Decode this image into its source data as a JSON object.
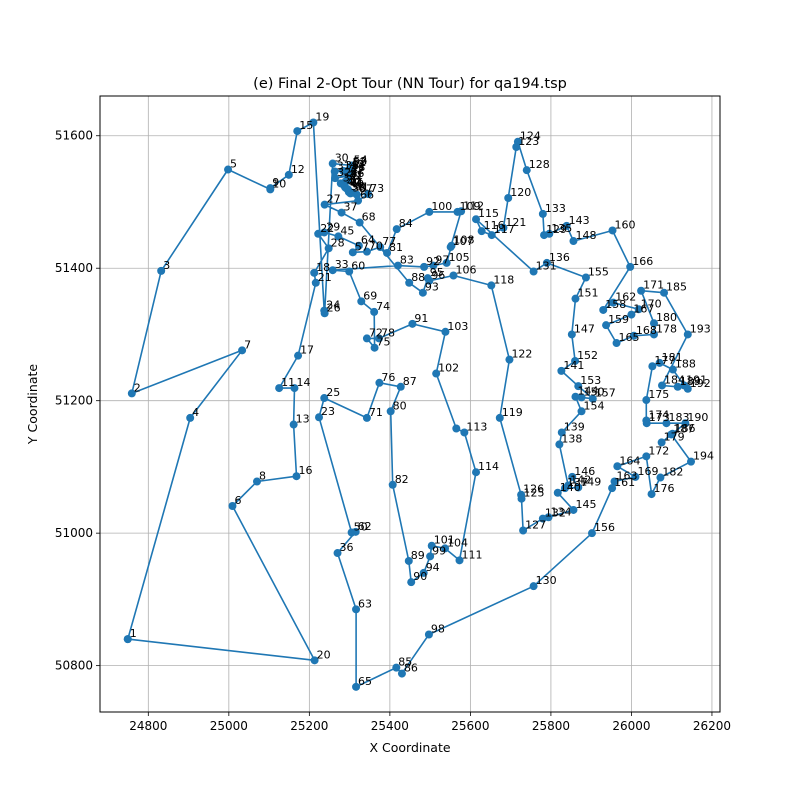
{
  "chart_data": {
    "type": "line",
    "title": "(e) Final 2-Opt Tour (NN Tour) for qa194.tsp",
    "xlabel": "X Coordinate",
    "ylabel": "Y Coordinate",
    "xlim": [
      24680,
      26220
    ],
    "ylim": [
      50730,
      51660
    ],
    "xticks": [
      24800,
      25000,
      25200,
      25400,
      25600,
      25800,
      26000,
      26200
    ],
    "yticks": [
      50800,
      51000,
      51200,
      51400,
      51600
    ],
    "grid": true,
    "color": "#1f77b4",
    "points": [
      {
        "id": 1,
        "x": 24749,
        "y": 50840
      },
      {
        "id": 20,
        "x": 25213,
        "y": 50808
      },
      {
        "id": 6,
        "x": 25009,
        "y": 51041
      },
      {
        "id": 8,
        "x": 25070,
        "y": 51078
      },
      {
        "id": 16,
        "x": 25168,
        "y": 51086
      },
      {
        "id": 13,
        "x": 25161,
        "y": 51164
      },
      {
        "id": 14,
        "x": 25163,
        "y": 51219
      },
      {
        "id": 11,
        "x": 25125,
        "y": 51219
      },
      {
        "id": 17,
        "x": 25172,
        "y": 51268
      },
      {
        "id": 21,
        "x": 25216,
        "y": 51378
      },
      {
        "id": 18,
        "x": 25212,
        "y": 51393
      },
      {
        "id": 28,
        "x": 25248,
        "y": 51430
      },
      {
        "id": 22,
        "x": 25222,
        "y": 51452
      },
      {
        "id": 29,
        "x": 25237,
        "y": 51454
      },
      {
        "id": 45,
        "x": 25272,
        "y": 51448
      },
      {
        "id": 64,
        "x": 25323,
        "y": 51434
      },
      {
        "id": 57,
        "x": 25308,
        "y": 51424
      },
      {
        "id": 70,
        "x": 25343,
        "y": 51425
      },
      {
        "id": 77,
        "x": 25376,
        "y": 51432
      },
      {
        "id": 81,
        "x": 25393,
        "y": 51423
      },
      {
        "id": 84,
        "x": 25417,
        "y": 51459
      },
      {
        "id": 100,
        "x": 25498,
        "y": 51485
      },
      {
        "id": 109,
        "x": 25568,
        "y": 51485
      },
      {
        "id": 112,
        "x": 25577,
        "y": 51486
      },
      {
        "id": 107,
        "x": 25551,
        "y": 51432
      },
      {
        "id": 108,
        "x": 25553,
        "y": 51434
      },
      {
        "id": 105,
        "x": 25541,
        "y": 51408
      },
      {
        "id": 97,
        "x": 25508,
        "y": 51404
      },
      {
        "id": 92,
        "x": 25485,
        "y": 51402
      },
      {
        "id": 83,
        "x": 25420,
        "y": 51404
      },
      {
        "id": 33,
        "x": 25258,
        "y": 51397
      },
      {
        "id": 60,
        "x": 25299,
        "y": 51395
      },
      {
        "id": 69,
        "x": 25329,
        "y": 51350
      },
      {
        "id": 74,
        "x": 25361,
        "y": 51334
      },
      {
        "id": 75,
        "x": 25362,
        "y": 51280
      },
      {
        "id": 72,
        "x": 25343,
        "y": 51294
      },
      {
        "id": 78,
        "x": 25373,
        "y": 51294
      },
      {
        "id": 91,
        "x": 25456,
        "y": 51316
      },
      {
        "id": 103,
        "x": 25538,
        "y": 51304
      },
      {
        "id": 102,
        "x": 25515,
        "y": 51241
      },
      {
        "id": 109,
        "x": 25565,
        "y": 51158
      },
      {
        "id": 113,
        "x": 25585,
        "y": 51152
      },
      {
        "id": 114,
        "x": 25614,
        "y": 51092
      },
      {
        "id": 111,
        "x": 25573,
        "y": 50959
      },
      {
        "id": 104,
        "x": 25537,
        "y": 50977
      },
      {
        "id": 101,
        "x": 25504,
        "y": 50981
      },
      {
        "id": 99,
        "x": 25500,
        "y": 50965
      },
      {
        "id": 94,
        "x": 25484,
        "y": 50940
      },
      {
        "id": 90,
        "x": 25453,
        "y": 50926
      },
      {
        "id": 89,
        "x": 25447,
        "y": 50958
      },
      {
        "id": 82,
        "x": 25407,
        "y": 51073
      },
      {
        "id": 80,
        "x": 25402,
        "y": 51184
      },
      {
        "id": 87,
        "x": 25427,
        "y": 51221
      },
      {
        "id": 76,
        "x": 25374,
        "y": 51227
      },
      {
        "id": 71,
        "x": 25343,
        "y": 51174
      },
      {
        "id": 25,
        "x": 25237,
        "y": 51204
      },
      {
        "id": 23,
        "x": 25224,
        "y": 51175
      },
      {
        "id": 50,
        "x": 25305,
        "y": 51001
      },
      {
        "id": 62,
        "x": 25315,
        "y": 51002
      },
      {
        "id": 36,
        "x": 25270,
        "y": 50970
      },
      {
        "id": 63,
        "x": 25316,
        "y": 50885
      },
      {
        "id": 65,
        "x": 25316,
        "y": 50768
      },
      {
        "id": 85,
        "x": 25416,
        "y": 50797
      },
      {
        "id": 86,
        "x": 25430,
        "y": 50788
      },
      {
        "id": 98,
        "x": 25497,
        "y": 50847
      },
      {
        "id": 130,
        "x": 25757,
        "y": 50920
      },
      {
        "id": 156,
        "x": 25902,
        "y": 51000
      },
      {
        "id": 161,
        "x": 25952,
        "y": 51068
      },
      {
        "id": 163,
        "x": 25958,
        "y": 51078
      },
      {
        "id": 169,
        "x": 26010,
        "y": 51085
      },
      {
        "id": 164,
        "x": 25965,
        "y": 51101
      },
      {
        "id": 172,
        "x": 26037,
        "y": 51116
      },
      {
        "id": 176,
        "x": 26050,
        "y": 51059
      },
      {
        "id": 182,
        "x": 26072,
        "y": 51084
      },
      {
        "id": 194,
        "x": 26148,
        "y": 51108
      },
      {
        "id": 187,
        "x": 26099,
        "y": 51149
      },
      {
        "id": 186,
        "x": 26102,
        "y": 51150
      },
      {
        "id": 179,
        "x": 26075,
        "y": 51137
      },
      {
        "id": 190,
        "x": 26134,
        "y": 51166
      },
      {
        "id": 183,
        "x": 26087,
        "y": 51166
      },
      {
        "id": 173,
        "x": 26038,
        "y": 51166
      },
      {
        "id": 174,
        "x": 26037,
        "y": 51170
      },
      {
        "id": 175,
        "x": 26037,
        "y": 51201
      },
      {
        "id": 177,
        "x": 26052,
        "y": 51252
      },
      {
        "id": 181,
        "x": 26070,
        "y": 51257
      },
      {
        "id": 188,
        "x": 26103,
        "y": 51247
      },
      {
        "id": 191,
        "x": 26131,
        "y": 51223
      },
      {
        "id": 192,
        "x": 26140,
        "y": 51218
      },
      {
        "id": 189,
        "x": 26115,
        "y": 51221
      },
      {
        "id": 184,
        "x": 26076,
        "y": 51223
      },
      {
        "id": 193,
        "x": 26140,
        "y": 51300
      },
      {
        "id": 185,
        "x": 26081,
        "y": 51363
      },
      {
        "id": 171,
        "x": 26024,
        "y": 51366
      },
      {
        "id": 180,
        "x": 26056,
        "y": 51317
      },
      {
        "id": 178,
        "x": 26056,
        "y": 51300
      },
      {
        "id": 168,
        "x": 26006,
        "y": 51298
      },
      {
        "id": 165,
        "x": 25963,
        "y": 51287
      },
      {
        "id": 159,
        "x": 25937,
        "y": 51314
      },
      {
        "id": 167,
        "x": 26000,
        "y": 51330
      },
      {
        "id": 170,
        "x": 26018,
        "y": 51338
      },
      {
        "id": 162,
        "x": 25955,
        "y": 51348
      },
      {
        "id": 158,
        "x": 25930,
        "y": 51337
      },
      {
        "id": 166,
        "x": 25997,
        "y": 51402
      },
      {
        "id": 160,
        "x": 25953,
        "y": 51457
      },
      {
        "id": 148,
        "x": 25856,
        "y": 51441
      },
      {
        "id": 143,
        "x": 25839,
        "y": 51464
      },
      {
        "id": 135,
        "x": 25796,
        "y": 51452
      },
      {
        "id": 129,
        "x": 25783,
        "y": 51450
      },
      {
        "id": 133,
        "x": 25780,
        "y": 51482
      },
      {
        "id": 128,
        "x": 25740,
        "y": 51548
      },
      {
        "id": 124,
        "x": 25718,
        "y": 51591
      },
      {
        "id": 123,
        "x": 25714,
        "y": 51583
      },
      {
        "id": 120,
        "x": 25694,
        "y": 51506
      },
      {
        "id": 121,
        "x": 25682,
        "y": 51461
      },
      {
        "id": 117,
        "x": 25653,
        "y": 51450
      },
      {
        "id": 116,
        "x": 25628,
        "y": 51456
      },
      {
        "id": 115,
        "x": 25614,
        "y": 51474
      },
      {
        "id": 131,
        "x": 25757,
        "y": 51395
      },
      {
        "id": 136,
        "x": 25790,
        "y": 51408
      },
      {
        "id": 155,
        "x": 25887,
        "y": 51386
      },
      {
        "id": 151,
        "x": 25861,
        "y": 51354
      },
      {
        "id": 147,
        "x": 25852,
        "y": 51300
      },
      {
        "id": 152,
        "x": 25860,
        "y": 51260
      },
      {
        "id": 141,
        "x": 25826,
        "y": 51245
      },
      {
        "id": 153,
        "x": 25868,
        "y": 51222
      },
      {
        "id": 157,
        "x": 25904,
        "y": 51203
      },
      {
        "id": 150,
        "x": 25876,
        "y": 51205
      },
      {
        "id": 144,
        "x": 25861,
        "y": 51206
      },
      {
        "id": 154,
        "x": 25876,
        "y": 51184
      },
      {
        "id": 139,
        "x": 25827,
        "y": 51152
      },
      {
        "id": 138,
        "x": 25821,
        "y": 51134
      },
      {
        "id": 142,
        "x": 25843,
        "y": 51072
      },
      {
        "id": 146,
        "x": 25853,
        "y": 51085
      },
      {
        "id": 149,
        "x": 25868,
        "y": 51069
      },
      {
        "id": 137,
        "x": 25835,
        "y": 51068
      },
      {
        "id": 140,
        "x": 25817,
        "y": 51061
      },
      {
        "id": 145,
        "x": 25856,
        "y": 51035
      },
      {
        "id": 134,
        "x": 25794,
        "y": 51024
      },
      {
        "id": 132,
        "x": 25780,
        "y": 51022
      },
      {
        "id": 127,
        "x": 25731,
        "y": 51004
      },
      {
        "id": 125,
        "x": 25727,
        "y": 51052
      },
      {
        "id": 126,
        "x": 25726,
        "y": 51058
      },
      {
        "id": 119,
        "x": 25673,
        "y": 51174
      },
      {
        "id": 122,
        "x": 25697,
        "y": 51262
      },
      {
        "id": 118,
        "x": 25652,
        "y": 51374
      },
      {
        "id": 106,
        "x": 25558,
        "y": 51389
      },
      {
        "id": 96,
        "x": 25498,
        "y": 51381
      },
      {
        "id": 95,
        "x": 25494,
        "y": 51385
      },
      {
        "id": 93,
        "x": 25482,
        "y": 51363
      },
      {
        "id": 88,
        "x": 25448,
        "y": 51378
      },
      {
        "id": 68,
        "x": 25325,
        "y": 51469
      },
      {
        "id": 37,
        "x": 25280,
        "y": 51484
      },
      {
        "id": 27,
        "x": 25238,
        "y": 51496
      },
      {
        "id": 66,
        "x": 25321,
        "y": 51502
      },
      {
        "id": 73,
        "x": 25346,
        "y": 51512
      },
      {
        "id": 67,
        "x": 25318,
        "y": 51511
      },
      {
        "id": 61,
        "x": 25308,
        "y": 51514
      },
      {
        "id": 58,
        "x": 25302,
        "y": 51513
      },
      {
        "id": 56,
        "x": 25298,
        "y": 51515
      },
      {
        "id": 49,
        "x": 25296,
        "y": 51519
      },
      {
        "id": 44,
        "x": 25293,
        "y": 51520
      },
      {
        "id": 40,
        "x": 25289,
        "y": 51522
      },
      {
        "id": 38,
        "x": 25286,
        "y": 51525
      },
      {
        "id": 34,
        "x": 25278,
        "y": 51528
      },
      {
        "id": 39,
        "x": 25290,
        "y": 51531
      },
      {
        "id": 41,
        "x": 25294,
        "y": 51532
      },
      {
        "id": 46,
        "x": 25297,
        "y": 51535
      },
      {
        "id": 42,
        "x": 25296,
        "y": 51539
      },
      {
        "id": 32,
        "x": 25264,
        "y": 51536
      },
      {
        "id": 47,
        "x": 25298,
        "y": 51541
      },
      {
        "id": 48,
        "x": 25299,
        "y": 51544
      },
      {
        "id": 51,
        "x": 25300,
        "y": 51546
      },
      {
        "id": 43,
        "x": 25297,
        "y": 51548
      },
      {
        "id": 35,
        "x": 25284,
        "y": 51547
      },
      {
        "id": 31,
        "x": 25263,
        "y": 51546
      },
      {
        "id": 52,
        "x": 25302,
        "y": 51551
      },
      {
        "id": 53,
        "x": 25304,
        "y": 51553
      },
      {
        "id": 54,
        "x": 25305,
        "y": 51555
      },
      {
        "id": 30,
        "x": 25258,
        "y": 51558
      },
      {
        "id": 26,
        "x": 25238,
        "y": 51332
      },
      {
        "id": 24,
        "x": 25237,
        "y": 51336
      },
      {
        "id": 19,
        "x": 25210,
        "y": 51620
      },
      {
        "id": 15,
        "x": 25170,
        "y": 51607
      },
      {
        "id": 12,
        "x": 25149,
        "y": 51541
      },
      {
        "id": 9,
        "x": 25103,
        "y": 51521
      },
      {
        "id": 10,
        "x": 25103,
        "y": 51519
      },
      {
        "id": 5,
        "x": 24998,
        "y": 51549
      },
      {
        "id": 3,
        "x": 24832,
        "y": 51396
      },
      {
        "id": 2,
        "x": 24759,
        "y": 51211
      },
      {
        "id": 7,
        "x": 25033,
        "y": 51276
      },
      {
        "id": 4,
        "x": 24904,
        "y": 51174
      },
      {
        "id": 1,
        "x": 24749,
        "y": 50840
      }
    ]
  }
}
